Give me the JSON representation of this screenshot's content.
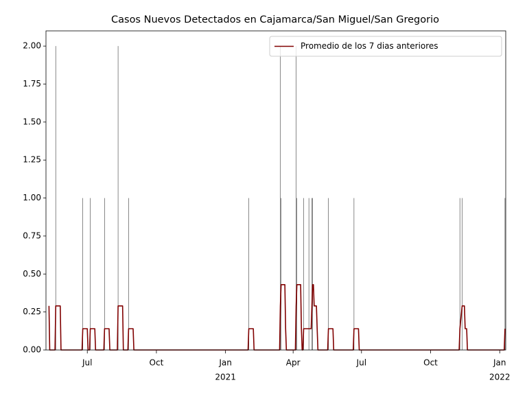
{
  "chart_data": {
    "type": "line",
    "title": "Casos Nuevos Detectados en Cajamarca/San Miguel/San Gregorio",
    "xlim": [
      "2020-05-07",
      "2022-01-09"
    ],
    "xticks": [
      {
        "value": "2020-07-01",
        "label": "Jul"
      },
      {
        "value": "2020-10-01",
        "label": "Oct"
      },
      {
        "value": "2021-01-01",
        "label": "Jan",
        "year": "2021"
      },
      {
        "value": "2021-04-01",
        "label": "Apr"
      },
      {
        "value": "2021-07-01",
        "label": "Jul"
      },
      {
        "value": "2021-10-01",
        "label": "Oct"
      },
      {
        "value": "2022-01-01",
        "label": "Jan",
        "year": "2022"
      }
    ],
    "ylim": [
      0,
      2.1
    ],
    "yticks": [
      {
        "value": 0,
        "label": "0.00"
      },
      {
        "value": 0.25,
        "label": "0.25"
      },
      {
        "value": 0.5,
        "label": "0.50"
      },
      {
        "value": 0.75,
        "label": "0.75"
      },
      {
        "value": 1,
        "label": "1.00"
      },
      {
        "value": 1.25,
        "label": "1.25"
      },
      {
        "value": 1.5,
        "label": "1.50"
      },
      {
        "value": 1.75,
        "label": "1.75"
      },
      {
        "value": 2,
        "label": "2.00"
      }
    ],
    "legend": "upper right",
    "bars": {
      "color": "#555555",
      "x": [
        "2020-05-20",
        "2020-06-25",
        "2020-07-05",
        "2020-07-24",
        "2020-08-11",
        "2020-08-25",
        "2021-02-01",
        "2021-03-15",
        "2021-03-16",
        "2021-04-05",
        "2021-04-06",
        "2021-04-15",
        "2021-04-22",
        "2021-04-26",
        "2021-04-27",
        "2021-05-18",
        "2021-06-21",
        "2021-11-09",
        "2021-11-12",
        "2022-01-08"
      ],
      "values": [
        2,
        1,
        1,
        1,
        2,
        1,
        1,
        2,
        1,
        2,
        1,
        1,
        1,
        1,
        1,
        1,
        1,
        1,
        1,
        1
      ]
    },
    "series": [
      {
        "name": "Promedio de los 7 dias anteriores",
        "color": "#800000",
        "x": [
          "2020-05-11",
          "2020-05-12",
          "2020-05-19",
          "2020-05-20",
          "2020-05-26",
          "2020-05-27",
          "2020-06-24",
          "2020-06-25",
          "2020-07-01",
          "2020-07-02",
          "2020-07-04",
          "2020-07-05",
          "2020-07-11",
          "2020-07-12",
          "2020-07-23",
          "2020-07-24",
          "2020-07-30",
          "2020-07-31",
          "2020-08-10",
          "2020-08-11",
          "2020-08-17",
          "2020-08-18",
          "2020-08-24",
          "2020-08-25",
          "2020-08-31",
          "2020-09-01",
          "2021-01-31",
          "2021-02-01",
          "2021-02-07",
          "2021-02-08",
          "2021-03-14",
          "2021-03-15",
          "2021-03-16",
          "2021-03-21",
          "2021-03-22",
          "2021-03-23",
          "2021-04-04",
          "2021-04-05",
          "2021-04-06",
          "2021-04-11",
          "2021-04-12",
          "2021-04-13",
          "2021-04-14",
          "2021-04-15",
          "2021-04-25",
          "2021-04-26",
          "2021-04-27",
          "2021-04-28",
          "2021-04-29",
          "2021-05-02",
          "2021-05-03",
          "2021-05-04",
          "2021-05-17",
          "2021-05-18",
          "2021-05-24",
          "2021-05-25",
          "2021-06-20",
          "2021-06-21",
          "2021-06-27",
          "2021-06-28",
          "2021-11-08",
          "2021-11-09",
          "2021-11-12",
          "2021-11-15",
          "2021-11-16",
          "2021-11-18",
          "2021-11-19",
          "2022-01-07",
          "2022-01-08"
        ],
        "values": [
          0.29,
          0,
          0,
          0.29,
          0.29,
          0,
          0,
          0.14,
          0.14,
          0,
          0,
          0.14,
          0.14,
          0,
          0,
          0.14,
          0.14,
          0,
          0,
          0.29,
          0.29,
          0,
          0,
          0.14,
          0.14,
          0,
          0,
          0.14,
          0.14,
          0,
          0,
          0.29,
          0.43,
          0.43,
          0.14,
          0,
          0,
          0.29,
          0.43,
          0.43,
          0.14,
          0,
          0,
          0.14,
          0.14,
          0.29,
          0.43,
          0.43,
          0.29,
          0.29,
          0.14,
          0,
          0,
          0.14,
          0.14,
          0,
          0,
          0.14,
          0.14,
          0,
          0,
          0.14,
          0.29,
          0.29,
          0.14,
          0.14,
          0,
          0,
          0.14
        ]
      }
    ]
  }
}
